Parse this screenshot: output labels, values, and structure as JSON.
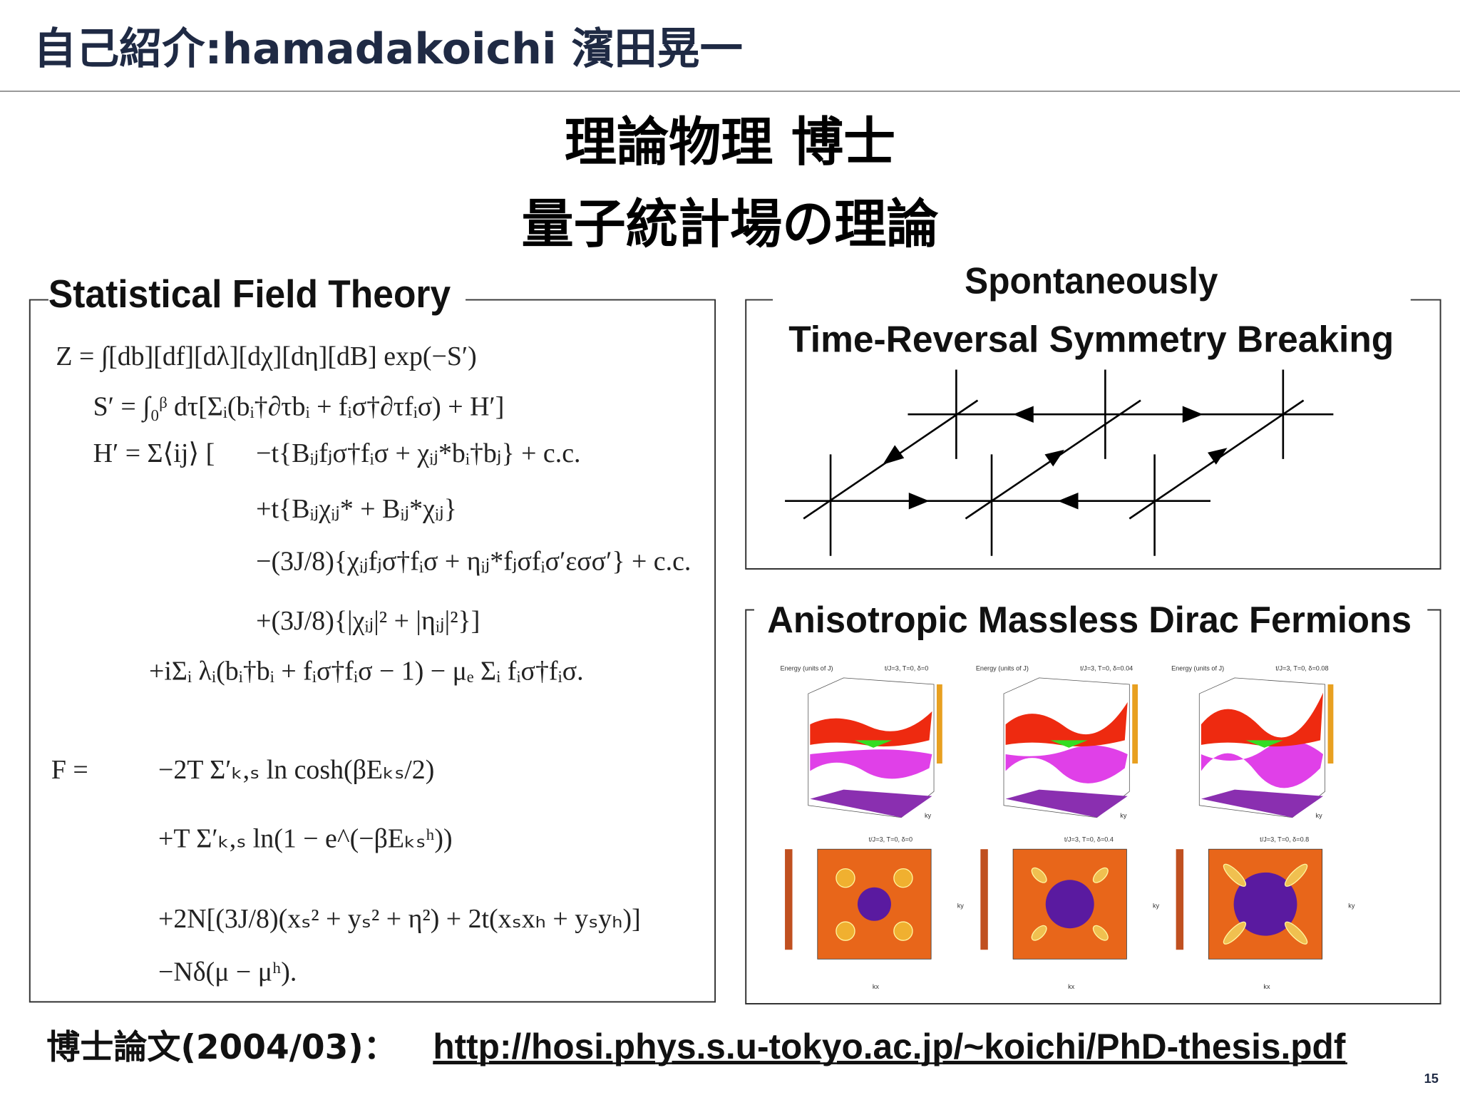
{
  "header": {
    "title": "自己紹介:hamadakoichi 濱田晃一"
  },
  "heading": {
    "line1": "理論物理 博士",
    "line2": "量子統計場の理論"
  },
  "left_panel": {
    "title": "Statistical Field Theory",
    "equations": [
      "Z = ∫[db][df][dλ][dχ][dη][dB] exp(−S′)",
      "S′ = ∫₀ᵝ dτ[Σᵢ(bᵢ†∂τbᵢ + fᵢσ†∂τfᵢσ) + H′]",
      "H′ = Σ⟨ij⟩ [",
      "−t{Bᵢⱼfⱼσ†fᵢσ + χᵢⱼ*bᵢ†bⱼ} + c.c.",
      "+t{Bᵢⱼχᵢⱼ* + Bᵢⱼ*χᵢⱼ}",
      "−(3J/8){χᵢⱼfⱼσ†fᵢσ + ηᵢⱼ*fⱼσfᵢσ′εσσ′} + c.c.",
      "+(3J/8){|χᵢⱼ|² + |ηᵢⱼ|²}]",
      "+iΣᵢ   λᵢ(bᵢ†bᵢ + fᵢσ†fᵢσ − 1) − μₑ Σᵢ fᵢσ†fᵢσ.",
      "F =",
      "−2T Σ′ₖ,ₛ ln cosh(βEₖₛ/2)",
      "+T Σ′ₖ,ₛ ln(1 − e^(−βEₖₛʰ))",
      "+2N[(3J/8)(xₛ² + yₛ² + η²) + 2t(xₛxₕ + yₛyₕ)]",
      "−Nδ(μ − μʰ)."
    ]
  },
  "right_top": {
    "title_line1": "Spontaneously",
    "title_line2": "Time-Reversal Symmetry Breaking"
  },
  "right_bottom": {
    "title": "Anisotropic Massless Dirac Fermions",
    "energy_label": "Energy (units of J)",
    "axis_x": "kx",
    "axis_y": "ky",
    "plots": [
      {
        "title": "t/J=3, T=0, δ=0"
      },
      {
        "title": "t/J=3, T=0, δ=0.04"
      },
      {
        "title": "t/J=3, T=0, δ=0.08"
      }
    ],
    "maps": [
      {
        "title": "t/J=3, T=0, δ=0"
      },
      {
        "title": "t/J=3, T=0, δ=0.4"
      },
      {
        "title": "t/J=3, T=0, δ=0.8"
      }
    ]
  },
  "footer": {
    "label": "博士論文(2004/03)：",
    "link": "http://hosi.phys.s.u-tokyo.ac.jp/~koichi/PhD-thesis.pdf",
    "page_number": "15"
  }
}
